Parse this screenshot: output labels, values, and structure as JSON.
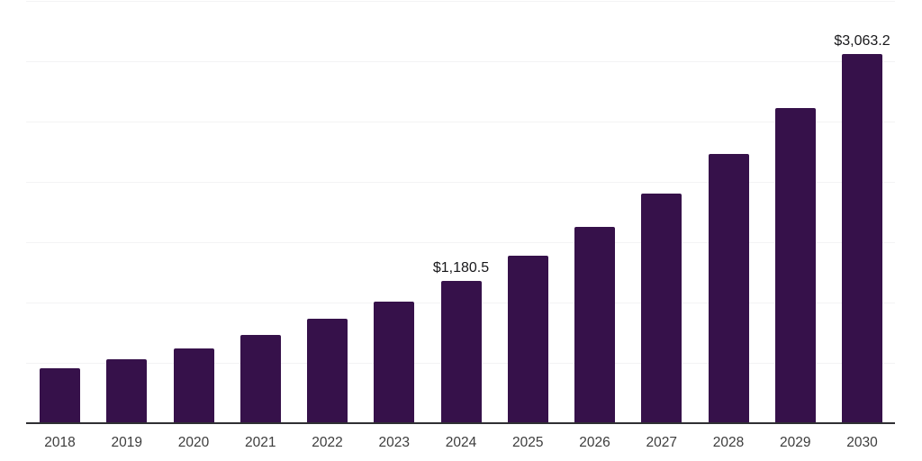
{
  "chart_data": {
    "type": "bar",
    "title": "",
    "xlabel": "",
    "ylabel": "",
    "categories": [
      "2018",
      "2019",
      "2020",
      "2021",
      "2022",
      "2023",
      "2024",
      "2025",
      "2026",
      "2027",
      "2028",
      "2029",
      "2030"
    ],
    "values": [
      455,
      530,
      620,
      728,
      860,
      1007,
      1180.5,
      1386,
      1625,
      1905,
      2233,
      2614,
      3063.2
    ],
    "data_labels": [
      {
        "category": "2024",
        "text": "$1,180.5"
      },
      {
        "category": "2030",
        "text": "$3,063.2"
      }
    ],
    "ylim": [
      0,
      3500
    ],
    "grid_step": 500,
    "grid": "horizontal",
    "legend": "none",
    "y_axis_tick_labels_visible": false,
    "colors": {
      "bar": "#36114A",
      "gridline": "#F3F3F4",
      "axis_line": "#2F2F33",
      "tick_label": "#3D3D3D",
      "value_label": "#18181B",
      "background": "#FFFFFF"
    }
  }
}
